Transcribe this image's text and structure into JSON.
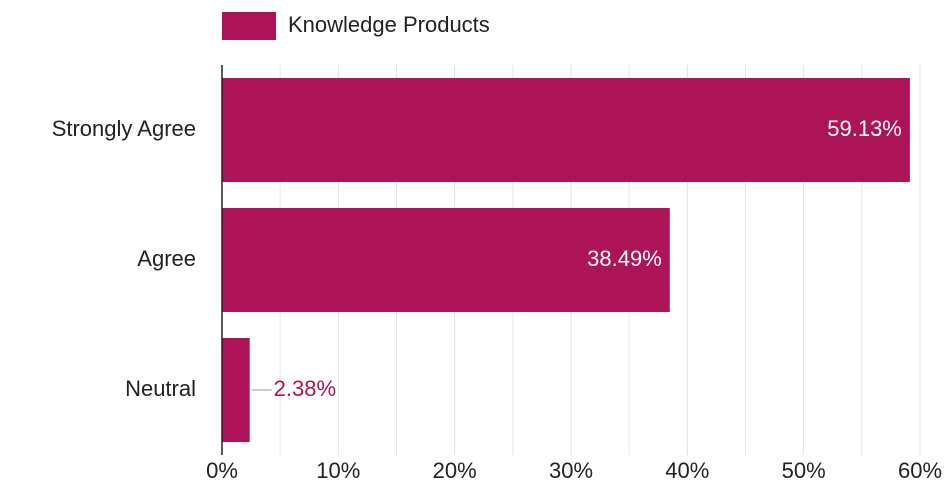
{
  "chart_data": {
    "type": "hbar",
    "categories": [
      "Strongly Agree",
      "Agree",
      "Neutral"
    ],
    "series": [
      {
        "name": "Knowledge Products",
        "color": "#ad1457",
        "values": [
          59.13,
          38.49,
          2.38
        ],
        "value_labels": [
          "59.13%",
          "38.49%",
          "2.38%"
        ]
      }
    ],
    "xlim": [
      0,
      60
    ],
    "xticks": [
      {
        "value": 0,
        "label": "0%"
      },
      {
        "value": 10,
        "label": "10%"
      },
      {
        "value": 20,
        "label": "20%"
      },
      {
        "value": 30,
        "label": "30%"
      },
      {
        "value": 40,
        "label": "40%"
      },
      {
        "value": 50,
        "label": "50%"
      },
      {
        "value": 60,
        "label": "60%"
      }
    ],
    "x_minor_ticks": [
      5,
      15,
      25,
      35,
      45,
      55
    ],
    "grid": true,
    "legend": "top"
  }
}
